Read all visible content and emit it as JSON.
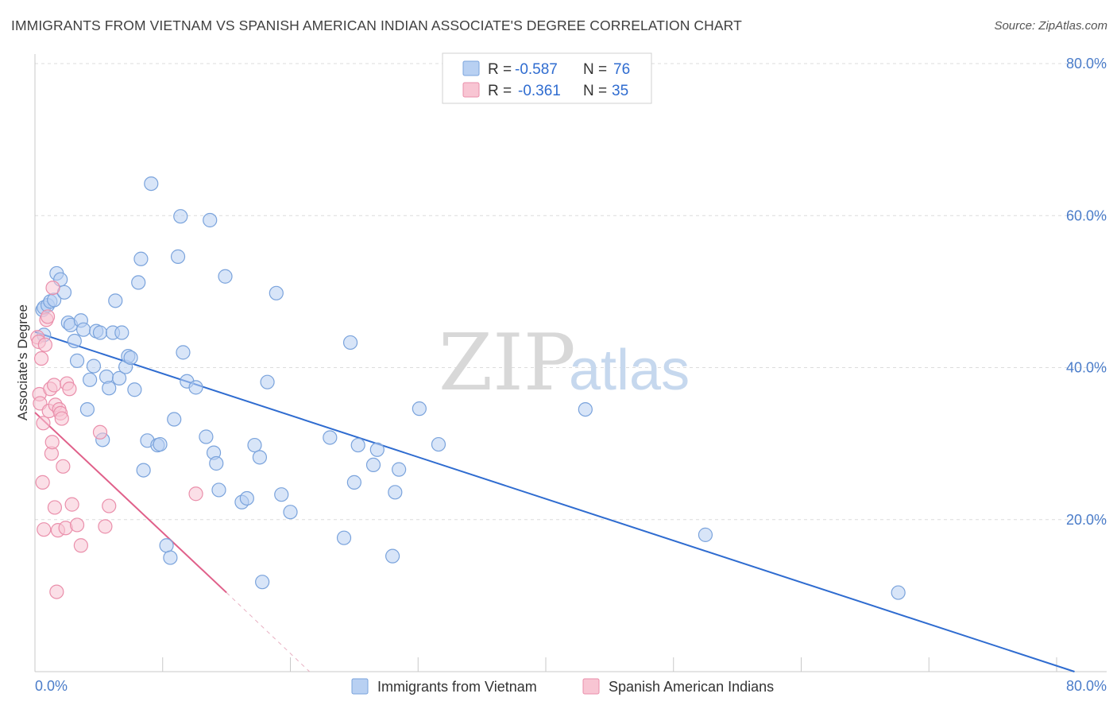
{
  "title": "IMMIGRANTS FROM VIETNAM VS SPANISH AMERICAN INDIAN ASSOCIATE'S DEGREE CORRELATION CHART",
  "source": "Source: ZipAtlas.com",
  "watermark": {
    "zip": "ZIP",
    "atlas": "atlas"
  },
  "colors": {
    "blue_fill": "#b8d0f2",
    "blue_stroke": "#7aa3dc",
    "blue_line": "#2f6cd0",
    "pink_fill": "#f8c5d3",
    "pink_stroke": "#ea8fab",
    "pink_line": "#e0608a",
    "tick_text": "#4a7cc9",
    "grid": "#dcdcdc"
  },
  "legend": {
    "rows": [
      {
        "r_label": "R =",
        "r_value": "-0.587",
        "n_label": "N =",
        "n_value": "76"
      },
      {
        "r_label": "R =",
        "r_value": "-0.361",
        "n_label": "N =",
        "n_value": "35"
      }
    ]
  },
  "bottom_legend": {
    "items": [
      {
        "label": "Immigrants from Vietnam"
      },
      {
        "label": "Spanish American Indians"
      }
    ]
  },
  "chart_data": {
    "type": "scatter",
    "title": "IMMIGRANTS FROM VIETNAM VS SPANISH AMERICAN INDIAN ASSOCIATE'S DEGREE CORRELATION CHART",
    "xlabel": "",
    "ylabel": "Associate's Degree",
    "xlim": [
      0,
      80
    ],
    "ylim": [
      0,
      80
    ],
    "x_tick_labels": [
      "0.0%",
      "80.0%"
    ],
    "y_ticks": [
      20,
      40,
      60,
      80
    ],
    "y_tick_labels": [
      "20.0%",
      "40.0%",
      "60.0%",
      "80.0%"
    ],
    "grid": true,
    "legend_position": "top-center",
    "series": [
      {
        "name": "Immigrants from Vietnam",
        "color": "#b8d0f2",
        "R": -0.587,
        "N": 76,
        "trend": {
          "x": [
            0,
            81.4
          ],
          "y": [
            44.7,
            0
          ]
        },
        "points": [
          [
            0.7,
            44.3
          ],
          [
            0.6,
            47.6
          ],
          [
            0.7,
            47.9
          ],
          [
            1.0,
            48.2
          ],
          [
            1.2,
            48.7
          ],
          [
            1.5,
            48.9
          ],
          [
            1.7,
            52.4
          ],
          [
            2.0,
            51.6
          ],
          [
            2.3,
            49.9
          ],
          [
            2.6,
            45.9
          ],
          [
            2.8,
            45.6
          ],
          [
            3.1,
            43.5
          ],
          [
            3.3,
            40.9
          ],
          [
            3.6,
            46.2
          ],
          [
            3.8,
            45.0
          ],
          [
            4.1,
            34.5
          ],
          [
            4.3,
            38.4
          ],
          [
            4.6,
            40.2
          ],
          [
            4.8,
            44.8
          ],
          [
            5.1,
            44.6
          ],
          [
            5.3,
            30.5
          ],
          [
            5.6,
            38.8
          ],
          [
            5.8,
            37.3
          ],
          [
            6.1,
            44.6
          ],
          [
            6.3,
            48.8
          ],
          [
            6.6,
            38.6
          ],
          [
            6.8,
            44.6
          ],
          [
            7.1,
            40.1
          ],
          [
            7.3,
            41.5
          ],
          [
            7.5,
            41.3
          ],
          [
            7.8,
            37.1
          ],
          [
            8.1,
            51.2
          ],
          [
            8.3,
            54.3
          ],
          [
            8.5,
            26.5
          ],
          [
            8.8,
            30.4
          ],
          [
            9.1,
            64.2
          ],
          [
            9.6,
            29.8
          ],
          [
            9.8,
            29.9
          ],
          [
            10.3,
            16.6
          ],
          [
            10.6,
            15.0
          ],
          [
            10.9,
            33.2
          ],
          [
            11.2,
            54.6
          ],
          [
            11.4,
            59.9
          ],
          [
            11.6,
            42.0
          ],
          [
            11.9,
            38.2
          ],
          [
            12.6,
            37.4
          ],
          [
            13.4,
            30.9
          ],
          [
            13.7,
            59.4
          ],
          [
            14.0,
            28.8
          ],
          [
            14.2,
            27.4
          ],
          [
            14.4,
            23.9
          ],
          [
            14.9,
            52.0
          ],
          [
            16.2,
            22.3
          ],
          [
            16.6,
            22.8
          ],
          [
            17.2,
            29.8
          ],
          [
            17.6,
            28.2
          ],
          [
            17.8,
            11.8
          ],
          [
            18.2,
            38.1
          ],
          [
            18.9,
            49.8
          ],
          [
            19.3,
            23.3
          ],
          [
            20.0,
            21.0
          ],
          [
            23.1,
            30.8
          ],
          [
            24.2,
            17.6
          ],
          [
            24.7,
            43.3
          ],
          [
            25.0,
            24.9
          ],
          [
            25.3,
            29.8
          ],
          [
            26.5,
            27.2
          ],
          [
            26.8,
            29.2
          ],
          [
            28.0,
            15.2
          ],
          [
            28.2,
            23.6
          ],
          [
            28.5,
            26.6
          ],
          [
            30.1,
            34.6
          ],
          [
            31.6,
            29.9
          ],
          [
            43.1,
            34.5
          ],
          [
            52.5,
            18.0
          ],
          [
            67.6,
            10.4
          ]
        ]
      },
      {
        "name": "Spanish American Indians",
        "color": "#f8c5d3",
        "R": -0.361,
        "N": 35,
        "trend": {
          "x": [
            0,
            15.0
          ],
          "y": [
            34.1,
            10.4
          ]
        },
        "trend_extension": {
          "x": [
            15.0,
            21.5
          ],
          "y": [
            10.4,
            0
          ]
        },
        "points": [
          [
            0.2,
            44.0
          ],
          [
            0.3,
            43.4
          ],
          [
            0.35,
            36.5
          ],
          [
            0.4,
            35.3
          ],
          [
            0.5,
            41.2
          ],
          [
            0.6,
            24.9
          ],
          [
            0.65,
            32.7
          ],
          [
            0.7,
            18.7
          ],
          [
            0.8,
            43.0
          ],
          [
            0.9,
            46.3
          ],
          [
            1.0,
            46.7
          ],
          [
            1.1,
            34.3
          ],
          [
            1.2,
            37.2
          ],
          [
            1.3,
            28.7
          ],
          [
            1.35,
            30.2
          ],
          [
            1.4,
            50.5
          ],
          [
            1.5,
            37.7
          ],
          [
            1.55,
            21.6
          ],
          [
            1.6,
            35.1
          ],
          [
            1.7,
            10.5
          ],
          [
            1.8,
            18.6
          ],
          [
            1.9,
            34.5
          ],
          [
            2.0,
            34.0
          ],
          [
            2.1,
            33.3
          ],
          [
            2.2,
            27.0
          ],
          [
            2.4,
            18.9
          ],
          [
            2.5,
            37.9
          ],
          [
            2.7,
            37.2
          ],
          [
            2.9,
            22.0
          ],
          [
            3.3,
            19.3
          ],
          [
            3.6,
            16.6
          ],
          [
            5.1,
            31.5
          ],
          [
            5.5,
            19.1
          ],
          [
            5.8,
            21.8
          ],
          [
            12.6,
            23.4
          ]
        ]
      }
    ]
  }
}
